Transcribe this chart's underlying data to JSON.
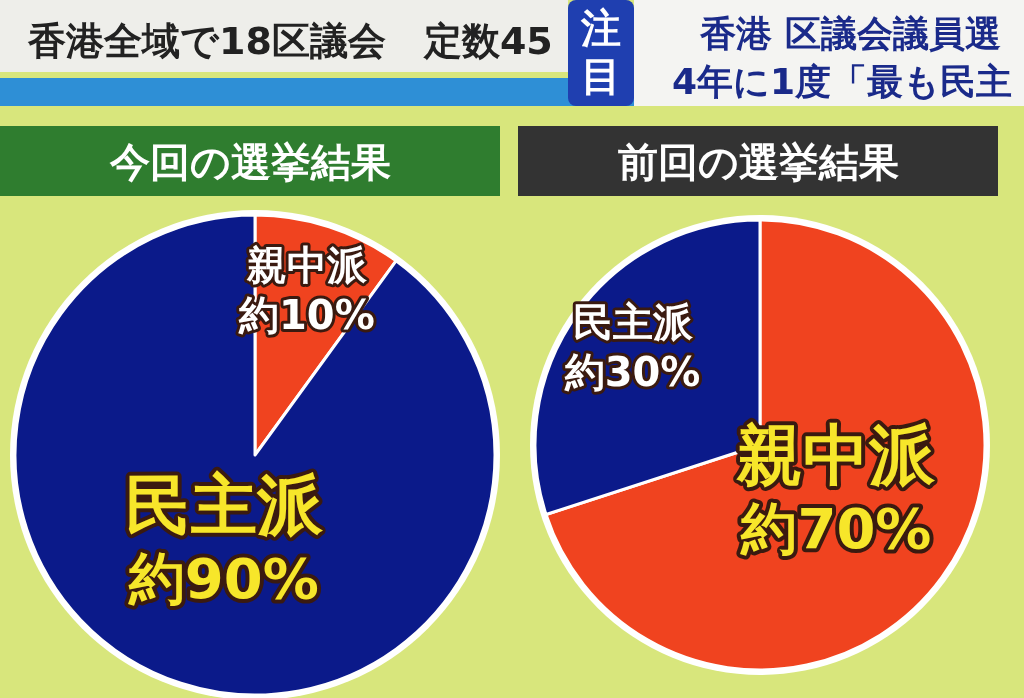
{
  "chart_data": [
    {
      "type": "pie",
      "title": "今回の選挙結果",
      "categories": [
        "親中派",
        "民主派"
      ],
      "values": [
        10,
        90
      ],
      "colors": [
        "#f0431f",
        "#0b1a8a"
      ],
      "value_labels": [
        "約10%",
        "約90%"
      ],
      "annotations": [
        "香港全域で18区議会　定数45",
        "注目",
        "香港 区議会議員選",
        "4年に1度「最も民主"
      ]
    },
    {
      "type": "pie",
      "title": "前回の選挙結果",
      "categories": [
        "親中派",
        "民主派"
      ],
      "values": [
        70,
        30
      ],
      "colors": [
        "#f0431f",
        "#0b1a8a"
      ],
      "value_labels": [
        "約70%",
        "約30%"
      ]
    }
  ]
}
